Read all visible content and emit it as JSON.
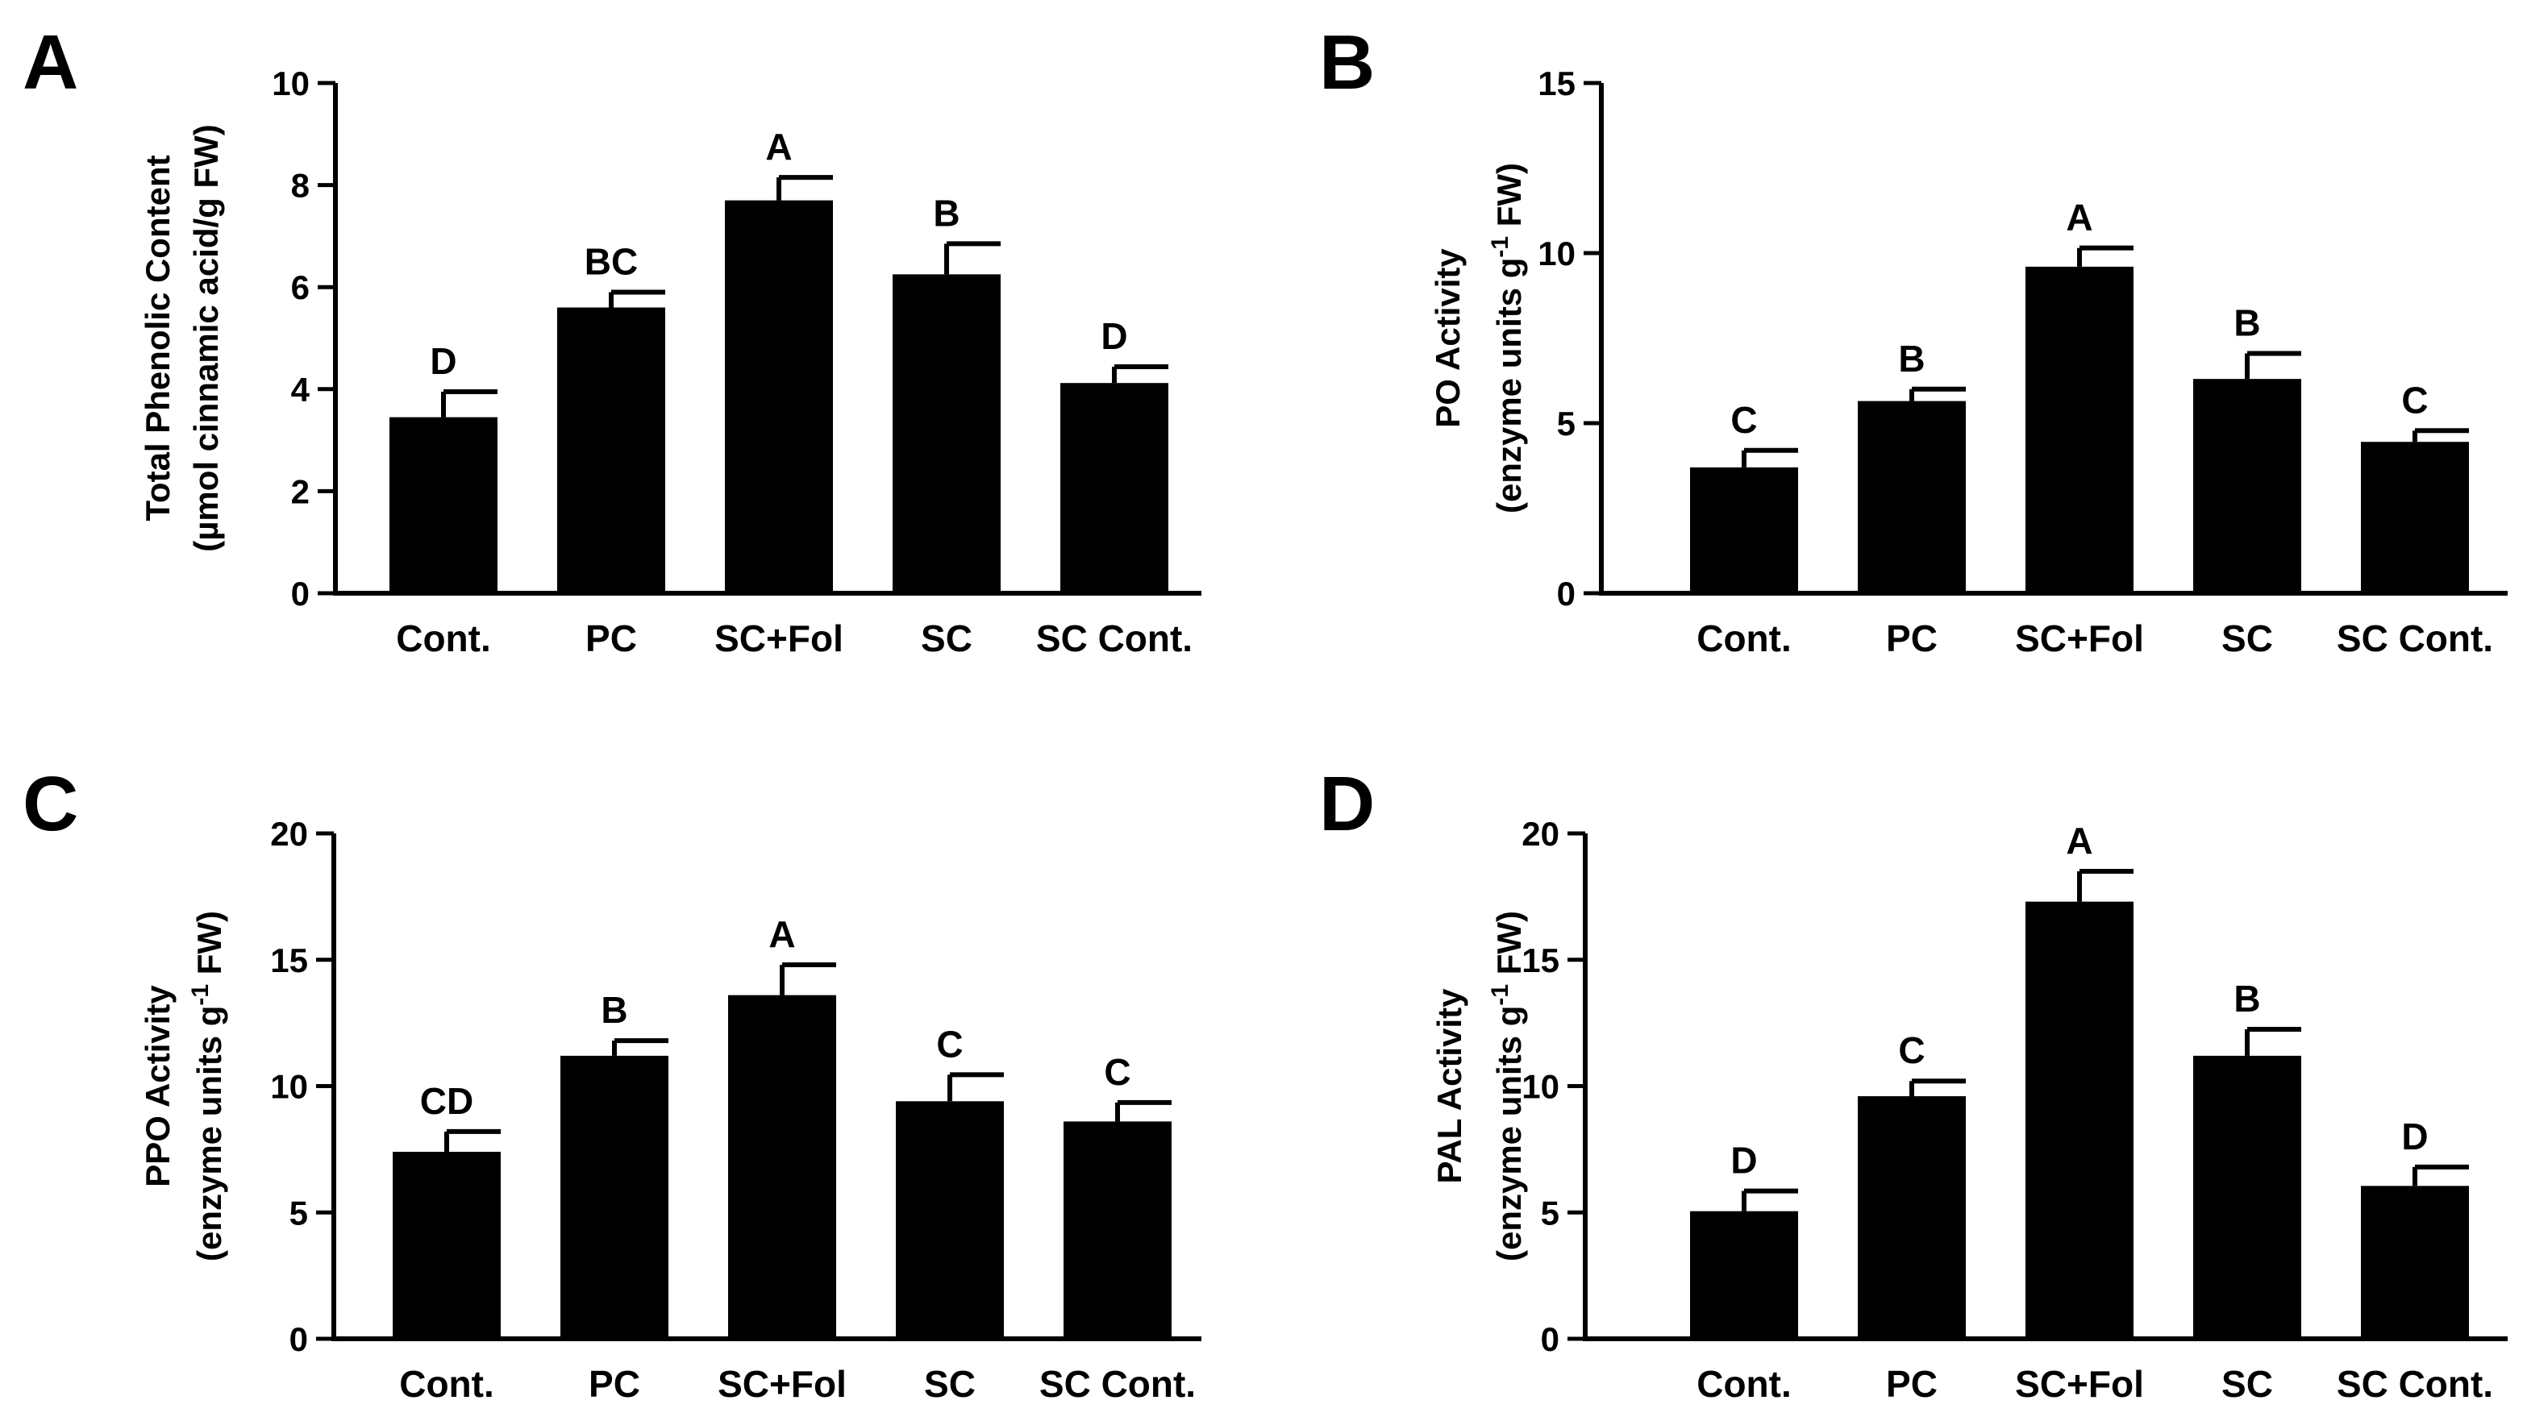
{
  "chart_data": [
    {
      "type": "bar",
      "panel_label": "A",
      "categories": [
        "Cont.",
        "PC",
        "SC+Fol",
        "SC",
        "SC Cont."
      ],
      "values": [
        3.45,
        5.6,
        7.7,
        6.25,
        4.12
      ],
      "errors": [
        0.5,
        0.3,
        0.45,
        0.6,
        0.32
      ],
      "significance": [
        "D",
        "BC",
        "A",
        "B",
        "D"
      ],
      "ylabel_line1": "Total Phenolic Content",
      "ylabel_line2": "(µmol cinnamic acid/g FW)",
      "ylabel_line2_sup": "",
      "ylabel_line2_tail": "",
      "ylim": [
        0,
        10
      ],
      "yticks": [
        0,
        2,
        4,
        6,
        8,
        10
      ],
      "color": "#000000"
    },
    {
      "type": "bar",
      "panel_label": "B",
      "categories": [
        "Cont.",
        "PC",
        "SC+Fol",
        "SC",
        "SC Cont."
      ],
      "values": [
        3.7,
        5.65,
        9.6,
        6.3,
        4.45
      ],
      "errors": [
        0.5,
        0.35,
        0.55,
        0.75,
        0.33
      ],
      "significance": [
        "C",
        "B",
        "A",
        "B",
        "C"
      ],
      "ylabel_line1": "PO Activity",
      "ylabel_line2": "(enzyme units g",
      "ylabel_line2_sup": "-1",
      "ylabel_line2_tail": " FW)",
      "ylim": [
        0,
        15
      ],
      "yticks": [
        0,
        5,
        10,
        15
      ],
      "color": "#000000"
    },
    {
      "type": "bar",
      "panel_label": "C",
      "categories": [
        "Cont.",
        "PC",
        "SC+Fol",
        "SC",
        "SC Cont."
      ],
      "values": [
        7.4,
        11.2,
        13.6,
        9.4,
        8.6
      ],
      "errors": [
        0.8,
        0.6,
        1.2,
        1.05,
        0.75
      ],
      "significance": [
        "CD",
        "B",
        "A",
        "C",
        "C"
      ],
      "ylabel_line1": "PPO Activity",
      "ylabel_line2": "(enzyme units g",
      "ylabel_line2_sup": "-1",
      "ylabel_line2_tail": " FW)",
      "ylim": [
        0,
        20
      ],
      "yticks": [
        0,
        5,
        10,
        15,
        20
      ],
      "color": "#000000"
    },
    {
      "type": "bar",
      "panel_label": "D",
      "categories": [
        "Cont.",
        "PC",
        "SC+Fol",
        "SC",
        "SC Cont."
      ],
      "values": [
        5.05,
        9.6,
        17.3,
        11.2,
        6.05
      ],
      "errors": [
        0.8,
        0.6,
        1.2,
        1.05,
        0.75
      ],
      "significance": [
        "D",
        "C",
        "A",
        "B",
        "D"
      ],
      "ylabel_line1": "PAL Activity",
      "ylabel_line2": "(enzyme units g",
      "ylabel_line2_sup": "-1",
      "ylabel_line2_tail": " FW)",
      "ylim": [
        0,
        20
      ],
      "yticks": [
        0,
        5,
        10,
        15,
        20
      ],
      "color": "#000000"
    }
  ]
}
